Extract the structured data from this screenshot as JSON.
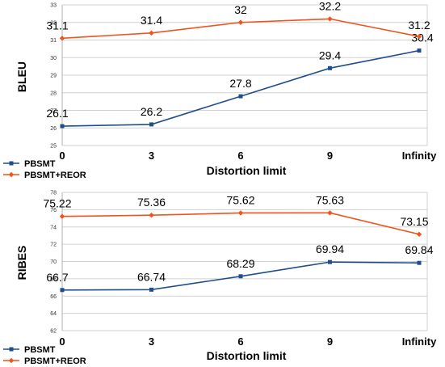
{
  "chart_data": [
    {
      "type": "line",
      "categories": [
        "0",
        "3",
        "6",
        "9",
        "Infinity"
      ],
      "xlabel": "Distortion limit",
      "ylabel": "BLEU",
      "ylim": [
        25,
        33
      ],
      "yticks": [
        "25",
        "26",
        "27",
        "28",
        "29",
        "30",
        "31",
        "32",
        "33"
      ],
      "grid": true,
      "legend": "bottom-left",
      "series": [
        {
          "name": "PBSMT",
          "color": "#1f4e8c",
          "marker": "square",
          "values": [
            26.1,
            26.2,
            27.8,
            29.4,
            30.4
          ],
          "labels": [
            "26.1",
            "26.2",
            "27.8",
            "29.4",
            "30.4"
          ]
        },
        {
          "name": "PBSMT+REOR",
          "color": "#f0531c",
          "marker": "diamond",
          "values": [
            31.1,
            31.4,
            32,
            32.2,
            31.2
          ],
          "labels": [
            "31.1",
            "31.4",
            "32",
            "32.2",
            "31.2"
          ]
        }
      ]
    },
    {
      "type": "line",
      "categories": [
        "0",
        "3",
        "6",
        "9",
        "Infinity"
      ],
      "xlabel": "Distortion limit",
      "ylabel": "RIBES",
      "ylim": [
        62,
        78
      ],
      "yticks": [
        "62",
        "64",
        "66",
        "68",
        "70",
        "72",
        "74",
        "76",
        "78"
      ],
      "grid": true,
      "legend": "bottom-left",
      "series": [
        {
          "name": "PBSMT",
          "color": "#1f4e8c",
          "marker": "square",
          "values": [
            66.7,
            66.74,
            68.29,
            69.94,
            69.84
          ],
          "labels": [
            "66.7",
            "66.74",
            "68.29",
            "69.94",
            "69.84"
          ]
        },
        {
          "name": "PBSMT+REOR",
          "color": "#f0531c",
          "marker": "diamond",
          "values": [
            75.22,
            75.36,
            75.62,
            75.63,
            73.15
          ],
          "labels": [
            "75.22",
            "75.36",
            "75.62",
            "75.63",
            "73.15"
          ]
        }
      ]
    }
  ]
}
